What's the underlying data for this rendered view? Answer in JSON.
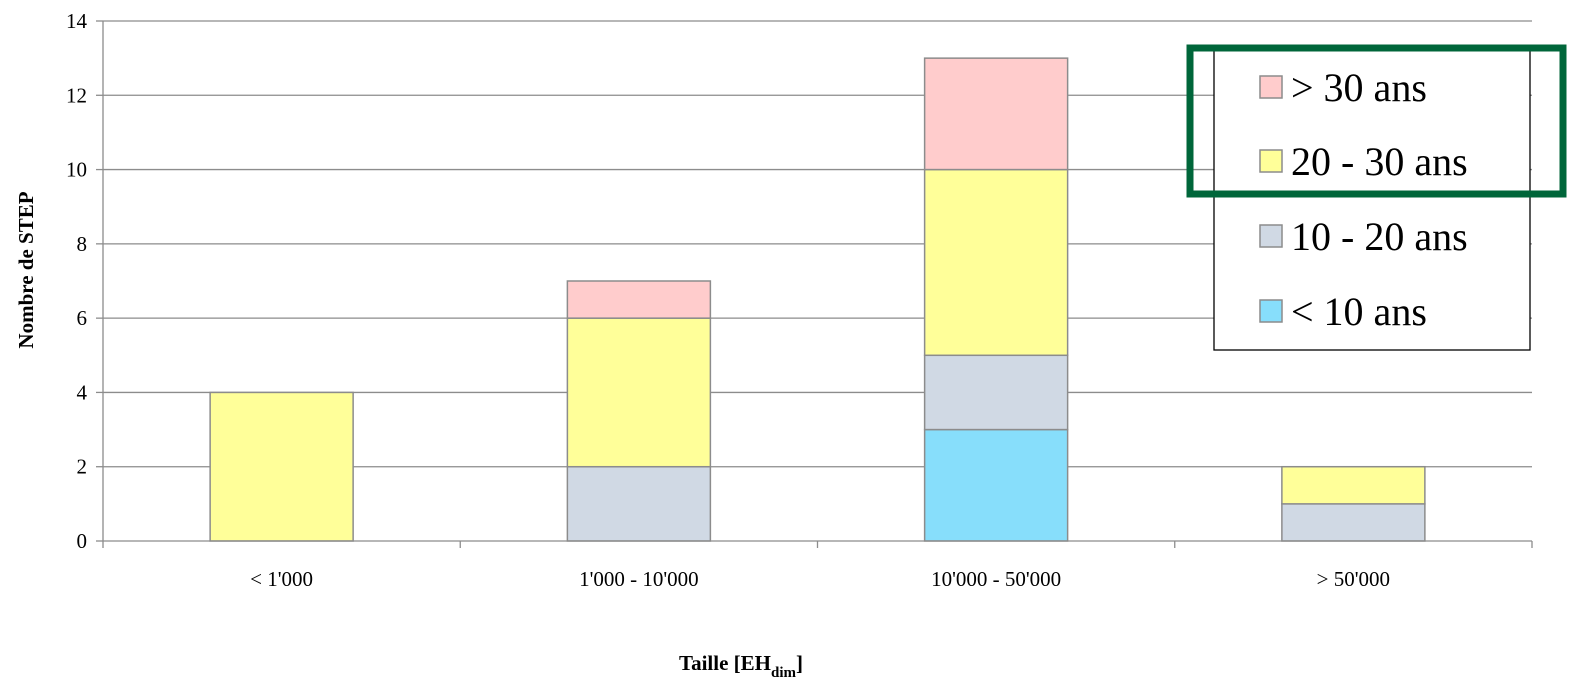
{
  "chart_data": {
    "type": "bar",
    "stacked": true,
    "categories": [
      "< 1'000",
      "1'000 - 10'000",
      "10'000 - 50'000",
      "> 50'000"
    ],
    "series": [
      {
        "name": "< 10 ans",
        "values": [
          0,
          0,
          3,
          0
        ],
        "color": "#87DEFB"
      },
      {
        "name": "10 - 20 ans",
        "values": [
          0,
          2,
          2,
          1
        ],
        "color": "#D0D9E4"
      },
      {
        "name": "20 - 30 ans",
        "values": [
          4,
          4,
          5,
          1
        ],
        "color": "#FFFF99"
      },
      {
        "name": "> 30 ans",
        "values": [
          0,
          1,
          3,
          0
        ],
        "color": "#FFCCCC"
      }
    ],
    "ylabel": "Nombre de STEP",
    "xlabel": {
      "main": "Taille [EH",
      "sub": "dim",
      "end": "]"
    },
    "ylim": [
      0,
      14
    ],
    "yticks": [
      0,
      2,
      4,
      6,
      8,
      10,
      12,
      14
    ],
    "grid": true,
    "legend": {
      "placement": "top-right",
      "order": [
        "> 30 ans",
        "20 - 30 ans",
        "10 - 20 ans",
        "< 10 ans"
      ]
    },
    "highlight": {
      "entries": [
        "> 30 ans",
        "20 - 30 ans"
      ],
      "color": "#00663A"
    }
  }
}
